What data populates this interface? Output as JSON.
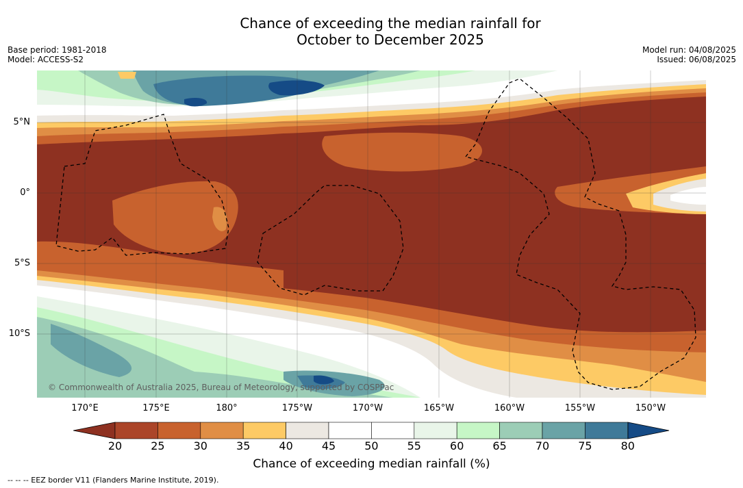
{
  "title": {
    "line1": "Chance of exceeding the median rainfall for",
    "line2": "October to December 2025"
  },
  "meta_left": {
    "base_period": "Base period: 1981-2018",
    "model": "Model: ACCESS-S2"
  },
  "meta_right": {
    "model_run": "Model run: 04/08/2025",
    "issued": "Issued: 06/08/2025"
  },
  "map": {
    "lat_labels": [
      "5°N",
      "0°",
      "5°S",
      "10°S"
    ],
    "lon_labels": [
      "170°E",
      "175°E",
      "180°",
      "175°W",
      "170°W",
      "165°W",
      "160°W",
      "155°W",
      "150°W"
    ],
    "copyright": "© Commonwealth of Australia 2025, Bureau of Meteorology, supported by COSPPac"
  },
  "colorbar": {
    "ticks": [
      "20",
      "25",
      "30",
      "35",
      "40",
      "45",
      "50",
      "55",
      "60",
      "65",
      "70",
      "75",
      "80"
    ],
    "under_color": "#8e3121",
    "over_color": "#154b86",
    "colors": [
      "#ab4529",
      "#c8622e",
      "#e08e45",
      "#fdca65",
      "#ece8e2",
      "#ffffff",
      "#ffffff",
      "#e9f5e9",
      "#c6f6c6",
      "#9ccdb6",
      "#6aa3a6",
      "#3f7a99"
    ],
    "label": "Chance of exceeding median rainfall (%)"
  },
  "legend_note": "--  --  -- EEZ border V11 (Flanders Marine Institute, 2019)."
}
